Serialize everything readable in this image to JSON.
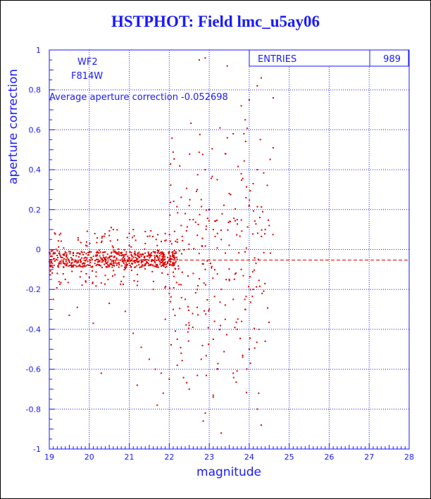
{
  "title": "HSTPHOT: Field lmc_u5ay06",
  "chart_data": {
    "type": "scatter",
    "title": "HSTPHOT: Field lmc_u5ay06",
    "xlabel": "magnitude",
    "ylabel": "aperture correction",
    "xlim": [
      19,
      28
    ],
    "ylim": [
      -1,
      1
    ],
    "x_ticks": [
      19,
      20,
      21,
      22,
      23,
      24,
      25,
      26,
      27,
      28
    ],
    "y_ticks": [
      -1,
      -0.8,
      -0.6,
      -0.4,
      -0.2,
      0,
      0.2,
      0.4,
      0.6,
      0.8,
      1
    ],
    "x_tick_labels": [
      "19",
      "20",
      "21",
      "22",
      "23",
      "24",
      "25",
      "26",
      "27",
      "28"
    ],
    "y_tick_labels": [
      "-1",
      "-0.8",
      "-0.6",
      "-0.4",
      "-0.2",
      "0",
      "0.2",
      "0.4",
      "0.6",
      "0.8",
      "1"
    ],
    "grid": true,
    "point_color": "#dd0000",
    "average_line": {
      "value": -0.052698,
      "color": "#dd0000",
      "style": "dashed"
    },
    "annotations": {
      "chip": "WF2",
      "filter": "F814W",
      "average_text": "Average aperture correction -0.052698"
    },
    "stats_box": {
      "label": "ENTRIES",
      "value": "989"
    },
    "points_sample_count": 989,
    "points": [
      [
        19.05,
        -0.06
      ],
      [
        19.12,
        -0.08
      ],
      [
        19.18,
        -0.05
      ],
      [
        19.25,
        -0.07
      ],
      [
        19.3,
        -0.04
      ],
      [
        19.36,
        -0.09
      ],
      [
        19.42,
        -0.06
      ],
      [
        19.48,
        -0.05
      ],
      [
        19.55,
        -0.07
      ],
      [
        19.6,
        -0.03
      ],
      [
        19.66,
        -0.08
      ],
      [
        19.72,
        -0.06
      ],
      [
        19.78,
        -0.05
      ],
      [
        19.85,
        -0.07
      ],
      [
        19.9,
        -0.04
      ],
      [
        19.96,
        -0.06
      ],
      [
        20.02,
        -0.08
      ],
      [
        20.08,
        -0.05
      ],
      [
        20.14,
        -0.07
      ],
      [
        20.2,
        -0.03
      ],
      [
        20.26,
        -0.06
      ],
      [
        20.32,
        -0.09
      ],
      [
        20.38,
        -0.05
      ],
      [
        20.44,
        -0.07
      ],
      [
        20.5,
        -0.04
      ],
      [
        20.56,
        -0.06
      ],
      [
        20.62,
        -0.08
      ],
      [
        20.68,
        -0.05
      ],
      [
        20.74,
        -0.07
      ],
      [
        20.8,
        -0.03
      ],
      [
        20.86,
        -0.06
      ],
      [
        20.92,
        -0.09
      ],
      [
        21.0,
        -0.05
      ],
      [
        21.08,
        -0.07
      ],
      [
        21.16,
        -0.04
      ],
      [
        21.24,
        -0.06
      ],
      [
        21.32,
        -0.08
      ],
      [
        21.4,
        -0.05
      ],
      [
        21.48,
        -0.07
      ],
      [
        21.56,
        -0.03
      ],
      [
        21.64,
        -0.06
      ],
      [
        21.72,
        -0.09
      ],
      [
        21.8,
        -0.05
      ],
      [
        21.88,
        -0.07
      ],
      [
        21.96,
        -0.04
      ],
      [
        22.04,
        -0.06
      ],
      [
        22.12,
        -0.08
      ],
      [
        22.2,
        -0.05
      ],
      [
        19.2,
        -0.12
      ],
      [
        19.4,
        -0.15
      ],
      [
        19.6,
        -0.02
      ],
      [
        19.8,
        -0.11
      ],
      [
        20.0,
        -0.14
      ],
      [
        20.2,
        -0.01
      ],
      [
        20.4,
        -0.13
      ],
      [
        20.6,
        0.01
      ],
      [
        20.8,
        -0.16
      ],
      [
        21.0,
        0.02
      ],
      [
        21.2,
        -0.18
      ],
      [
        21.4,
        0.03
      ],
      [
        21.6,
        -0.2
      ],
      [
        21.8,
        0.04
      ],
      [
        22.0,
        -0.22
      ],
      [
        22.2,
        0.05
      ],
      [
        19.1,
        -0.25
      ],
      [
        19.5,
        -0.33
      ],
      [
        19.7,
        -0.29
      ],
      [
        20.1,
        -0.37
      ],
      [
        20.3,
        -0.62
      ],
      [
        20.5,
        -0.27
      ],
      [
        20.9,
        -0.31
      ],
      [
        21.1,
        -0.42
      ],
      [
        21.3,
        -0.49
      ],
      [
        21.5,
        -0.55
      ],
      [
        21.7,
        -0.78
      ],
      [
        21.9,
        -0.35
      ],
      [
        21.2,
        -0.68
      ],
      [
        21.85,
        -0.72
      ],
      [
        21.65,
        -0.6
      ],
      [
        20.95,
        0.06
      ],
      [
        21.0,
        0.08
      ],
      [
        21.1,
        0.1
      ],
      [
        20.5,
        0.07
      ],
      [
        20.6,
        0.1
      ],
      [
        20.55,
        0.11
      ],
      [
        21.4,
        0.09
      ],
      [
        21.7,
        0.02
      ],
      [
        21.9,
        0.08
      ],
      [
        22.1,
        -0.3
      ],
      [
        22.2,
        -0.45
      ],
      [
        22.3,
        -0.52
      ],
      [
        22.3,
        0.12
      ],
      [
        22.4,
        0.18
      ],
      [
        22.4,
        -0.25
      ],
      [
        22.5,
        -0.38
      ],
      [
        22.5,
        0.22
      ],
      [
        22.6,
        -0.12
      ],
      [
        22.6,
        0.15
      ],
      [
        22.7,
        -0.2
      ],
      [
        22.7,
        0.3
      ],
      [
        22.8,
        -0.55
      ],
      [
        22.8,
        0.25
      ],
      [
        22.9,
        -0.1
      ],
      [
        22.9,
        0.4
      ],
      [
        23.0,
        -0.3
      ],
      [
        23.0,
        0.2
      ],
      [
        23.1,
        -0.45
      ],
      [
        23.1,
        0.1
      ],
      [
        23.2,
        0.35
      ],
      [
        23.2,
        -0.6
      ],
      [
        23.3,
        0.05
      ],
      [
        23.3,
        -0.2
      ],
      [
        23.4,
        0.48
      ],
      [
        23.4,
        -0.35
      ],
      [
        23.5,
        0.28
      ],
      [
        23.5,
        -0.15
      ],
      [
        23.6,
        0.58
      ],
      [
        23.6,
        -0.25
      ],
      [
        23.7,
        0.15
      ],
      [
        23.7,
        -0.4
      ],
      [
        23.8,
        0.38
      ],
      [
        23.8,
        -0.1
      ],
      [
        23.9,
        0.65
      ],
      [
        23.9,
        -0.3
      ],
      [
        24.0,
        0.22
      ],
      [
        24.0,
        -0.5
      ],
      [
        24.1,
        0.33
      ],
      [
        24.1,
        -0.2
      ],
      [
        24.2,
        0.4
      ],
      [
        24.2,
        -0.8
      ],
      [
        24.3,
        0.86
      ],
      [
        24.3,
        -0.88
      ],
      [
        24.4,
        0.1
      ],
      [
        24.4,
        -0.46
      ],
      [
        24.6,
        0.51
      ],
      [
        24.5,
        0.12
      ],
      [
        22.9,
        0.96
      ],
      [
        22.75,
        0.95
      ],
      [
        23.45,
        0.92
      ],
      [
        24.2,
        0.82
      ],
      [
        24.0,
        0.75
      ],
      [
        23.8,
        0.72
      ],
      [
        24.6,
        0.76
      ],
      [
        23.3,
        -0.92
      ],
      [
        22.85,
        -0.86
      ],
      [
        22.9,
        -0.82
      ],
      [
        23.1,
        -0.74
      ],
      [
        22.5,
        -0.7
      ],
      [
        22.0,
        -0.65
      ],
      [
        21.8,
        -0.62
      ],
      [
        22.2,
        -0.58
      ],
      [
        23.6,
        -0.62
      ]
    ]
  }
}
